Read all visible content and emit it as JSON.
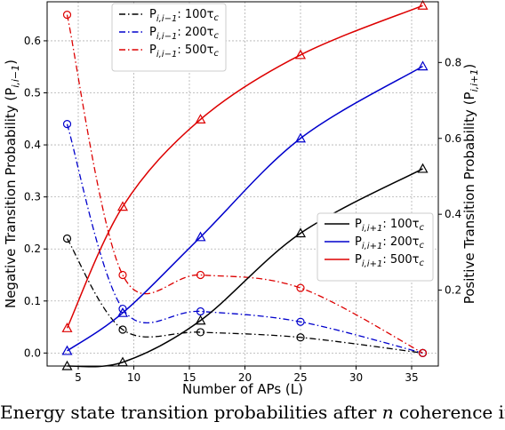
{
  "chart_data": {
    "type": "line",
    "xlabel": "Number of APs (L)",
    "ylabel_left": "Negative Transition Probability (P",
    "ylabel_left_sub": "i,i−1",
    "ylabel_right": "Positive Transition Probability (P",
    "ylabel_right_sub": "i,i+1",
    "xlim": [
      2.2,
      37.4
    ],
    "ylim_left": [
      -0.025,
      0.675
    ],
    "ylim_right": [
      0.0,
      0.96
    ],
    "x_ticks": [
      5,
      10,
      15,
      20,
      25,
      30,
      35
    ],
    "y_ticks_left": [
      0.0,
      0.1,
      0.2,
      0.3,
      0.4,
      0.5,
      0.6
    ],
    "y_ticks_right": [
      0.2,
      0.4,
      0.6,
      0.8
    ],
    "x_tick_labels": [
      "5",
      "10",
      "15",
      "20",
      "25",
      "30",
      "35"
    ],
    "y_tick_labels_left": [
      "0.0",
      "0.1",
      "0.2",
      "0.3",
      "0.4",
      "0.5",
      "0.6"
    ],
    "y_tick_labels_right": [
      "0.2",
      "0.4",
      "0.6",
      "0.8"
    ],
    "grid": true,
    "x": [
      4,
      9,
      16,
      25,
      36
    ],
    "negative_series": [
      {
        "name": "P",
        "sub": "i,i−1",
        "suffix": ": 100τ",
        "tsub": "c",
        "color": "#000000",
        "values": [
          0.22,
          0.045,
          0.04,
          0.03,
          0.0
        ]
      },
      {
        "name": "P",
        "sub": "i,i−1",
        "suffix": ": 200τ",
        "tsub": "c",
        "color": "#0000cc",
        "values": [
          0.44,
          0.085,
          0.08,
          0.06,
          0.0
        ]
      },
      {
        "name": "P",
        "sub": "i,i−1",
        "suffix": ": 500τ",
        "tsub": "c",
        "color": "#dd0000",
        "values": [
          0.65,
          0.15,
          0.15,
          0.125,
          0.0
        ]
      }
    ],
    "positive_series": [
      {
        "name": "P",
        "sub": "i,i+1",
        "suffix": ": 100τ",
        "tsub": "c",
        "color": "#000000",
        "values": [
          0.0,
          0.01,
          0.12,
          0.35,
          0.52
        ]
      },
      {
        "name": "P",
        "sub": "i,i+1",
        "suffix": ": 200τ",
        "tsub": "c",
        "color": "#0000cc",
        "values": [
          0.04,
          0.14,
          0.34,
          0.6,
          0.79
        ]
      },
      {
        "name": "P",
        "sub": "i,i+1",
        "suffix": ": 500τ",
        "tsub": "c",
        "color": "#dd0000",
        "values": [
          0.1,
          0.42,
          0.65,
          0.82,
          0.95
        ]
      }
    ],
    "negative_marker": "circle",
    "positive_marker": "triangle",
    "negative_line_style": "dash-dot",
    "positive_line_style": "solid",
    "legend_placement": [
      "top-left",
      "center-right"
    ]
  },
  "caption": {
    "line1_prefix": "Energy state transition probabilities after ",
    "line1_var": "n",
    "line1_suffix": " coherence intervals. ",
    "line2": ""
  }
}
